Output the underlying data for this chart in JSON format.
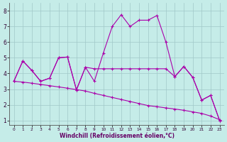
{
  "xlabel": "Windchill (Refroidissement éolien,°C)",
  "background_color": "#c5ece8",
  "grid_color": "#a0c8c8",
  "line_color": "#aa00aa",
  "x": [
    0,
    1,
    2,
    3,
    4,
    5,
    6,
    7,
    8,
    9,
    10,
    11,
    12,
    13,
    14,
    15,
    16,
    17,
    18,
    19,
    20,
    21,
    22,
    23
  ],
  "line1": [
    3.5,
    4.8,
    4.2,
    3.5,
    3.7,
    5.0,
    5.05,
    2.95,
    4.4,
    3.5,
    5.3,
    7.0,
    7.75,
    7.0,
    7.4,
    7.4,
    7.7,
    6.0,
    3.8,
    4.45,
    3.75,
    2.3,
    2.6,
    1.0
  ],
  "line2": [
    3.5,
    4.8,
    4.2,
    3.5,
    3.7,
    5.0,
    5.05,
    2.95,
    4.4,
    4.3,
    4.3,
    4.3,
    4.3,
    4.3,
    4.3,
    4.3,
    4.3,
    4.3,
    3.8,
    4.45,
    3.75,
    2.3,
    2.6,
    1.0
  ],
  "line3": [
    3.5,
    3.45,
    3.38,
    3.3,
    3.22,
    3.14,
    3.06,
    2.97,
    2.88,
    2.73,
    2.6,
    2.47,
    2.34,
    2.21,
    2.08,
    1.95,
    1.88,
    1.8,
    1.73,
    1.65,
    1.55,
    1.45,
    1.28,
    1.05
  ],
  "xlim": [
    -0.5,
    23.5
  ],
  "ylim": [
    0.7,
    8.5
  ],
  "xticks": [
    0,
    1,
    2,
    3,
    4,
    5,
    6,
    7,
    8,
    9,
    10,
    11,
    12,
    13,
    14,
    15,
    16,
    17,
    18,
    19,
    20,
    21,
    22,
    23
  ],
  "yticks": [
    1,
    2,
    3,
    4,
    5,
    6,
    7,
    8
  ],
  "figsize": [
    3.2,
    2.0
  ],
  "dpi": 100
}
